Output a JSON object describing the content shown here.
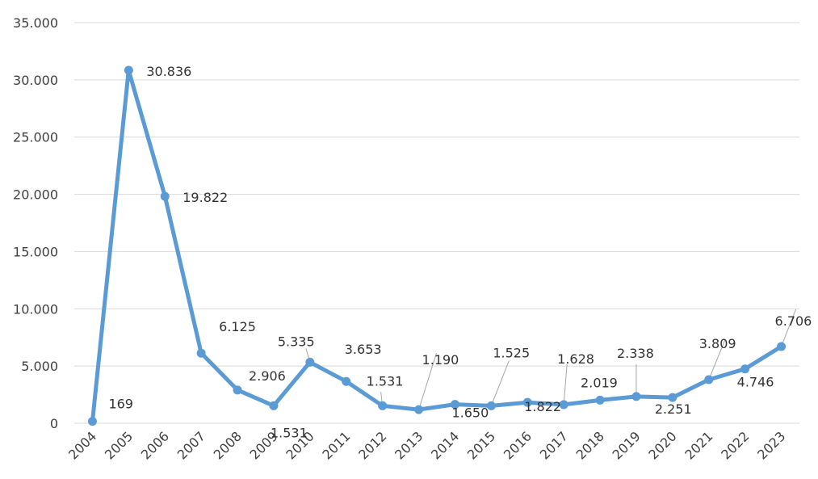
{
  "chart_data": {
    "type": "line",
    "title": "",
    "xlabel": "",
    "ylabel": "",
    "categories": [
      "2004",
      "2005",
      "2006",
      "2007",
      "2008",
      "2009",
      "2010",
      "2011",
      "2012",
      "2013",
      "2014",
      "2015",
      "2016",
      "2017",
      "2018",
      "2019",
      "2020",
      "2021",
      "2022",
      "2023"
    ],
    "series": [
      {
        "values": [
          169,
          30836,
          19822,
          6125,
          2906,
          1531,
          5335,
          3653,
          1531,
          1190,
          1650,
          1525,
          1822,
          1628,
          2019,
          2338,
          2251,
          3809,
          4746,
          6706
        ],
        "data_labels": [
          "169",
          "30.836",
          "19.822",
          "6.125",
          "2.906",
          "1.531",
          "5.335",
          "3.653",
          "1.531",
          "1.190",
          "1.650",
          "1.525",
          "1.822",
          "1.628",
          "2.019",
          "2.338",
          "2.251",
          "3.809",
          "4.746",
          "6.706"
        ],
        "color": "#5b9bd5"
      }
    ],
    "y_ticks": [
      "0",
      "5.000",
      "10.000",
      "15.000",
      "20.000",
      "25.000",
      "30.000",
      "35.000"
    ],
    "y_tick_values": [
      0,
      5000,
      10000,
      15000,
      20000,
      25000,
      30000,
      35000
    ],
    "ylim": [
      0,
      35000
    ],
    "grid": true,
    "legend": "none",
    "gridline_color": "#d9d9d9"
  }
}
